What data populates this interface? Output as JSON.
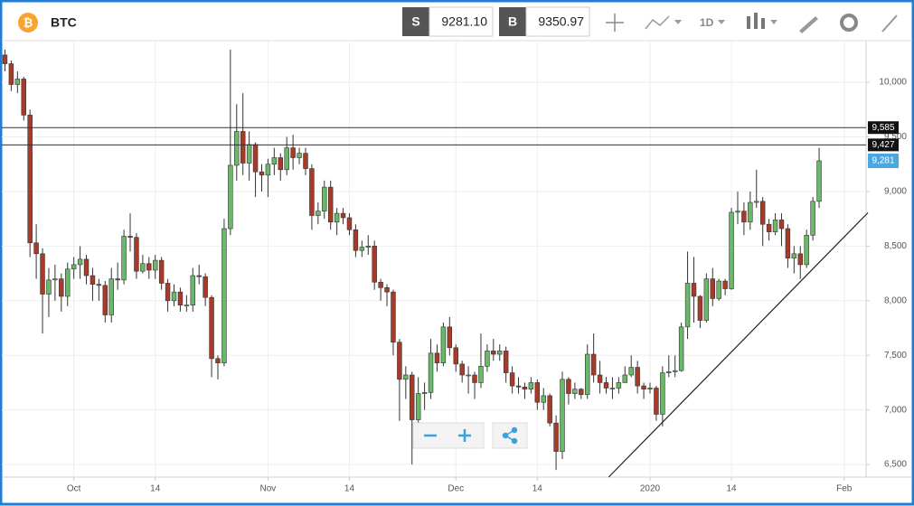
{
  "header": {
    "symbol": "BTC",
    "sell_label": "S",
    "sell_price": "9281.10",
    "buy_label": "B",
    "buy_price": "9350.97",
    "interval": "1D"
  },
  "chart_data": {
    "type": "candlestick",
    "x": [
      -11,
      -10,
      -9,
      -8,
      -7,
      -6,
      -5,
      -4,
      -3,
      -2,
      -1,
      0,
      1,
      2,
      3,
      4,
      5,
      6,
      7,
      8,
      9,
      10,
      11,
      12,
      13,
      14,
      15,
      16,
      17,
      18,
      19,
      20,
      21,
      22,
      23,
      24,
      25,
      26,
      27,
      28,
      29,
      30,
      31,
      32,
      33,
      34,
      35,
      36,
      37,
      38,
      39,
      40,
      41,
      42,
      43,
      44,
      45,
      46,
      47,
      48,
      49,
      50,
      51,
      52,
      53,
      54,
      55,
      56,
      57,
      58,
      59,
      60,
      61,
      62,
      63,
      64,
      65,
      66,
      67,
      68,
      69,
      70,
      71,
      72,
      73,
      74,
      75,
      76,
      77,
      78,
      79,
      80,
      81,
      82,
      83,
      84,
      85,
      86,
      87,
      88,
      89,
      90,
      91,
      92,
      93,
      94,
      95,
      96,
      97,
      98,
      99,
      100,
      101,
      102,
      103,
      104,
      105,
      106,
      107,
      108,
      109,
      110,
      111,
      112,
      113,
      114,
      115,
      116,
      117,
      118,
      119
    ],
    "open": [
      10250,
      10170,
      9980,
      10030,
      9700,
      8530,
      8430,
      8060,
      8190,
      8200,
      8040,
      8290,
      8330,
      8380,
      8230,
      8150,
      8140,
      7870,
      8200,
      8190,
      8590,
      8580,
      8270,
      8340,
      8280,
      8370,
      8160,
      8000,
      8080,
      7960,
      7960,
      8230,
      8220,
      8030,
      7470,
      7430,
      8660,
      9240,
      9550,
      9260,
      9430,
      9180,
      9150,
      9250,
      9310,
      9200,
      9400,
      9310,
      9350,
      9210,
      8780,
      8820,
      9040,
      8720,
      8800,
      8760,
      8650,
      8460,
      8490,
      8500,
      8170,
      8120,
      8080,
      7620,
      7280,
      7320,
      6910,
      7150,
      7160,
      7520,
      7430,
      7760,
      7570,
      7420,
      7320,
      7320,
      7250,
      7400,
      7540,
      7510,
      7540,
      7340,
      7220,
      7210,
      7190,
      7250,
      7070,
      7130,
      6880,
      6620,
      7280,
      7150,
      7190,
      7140,
      7510,
      7320,
      7250,
      7200,
      7200,
      7250,
      7320,
      7390,
      7220,
      7190,
      7200,
      6960,
      7340,
      7350,
      7360,
      7760,
      8160,
      8040,
      7820,
      8200,
      8020,
      8180,
      8110,
      8810,
      8820,
      8720,
      8900,
      8910,
      8700,
      8630,
      8740,
      8660,
      8390,
      8430,
      8330,
      8600,
      8910
    ],
    "high": [
      10300,
      10200,
      10100,
      10050,
      9750,
      8700,
      8480,
      8300,
      8330,
      8250,
      8350,
      8400,
      8500,
      8420,
      8300,
      8200,
      8180,
      8300,
      8350,
      8650,
      8800,
      8620,
      8420,
      8400,
      8420,
      8400,
      8200,
      8150,
      8120,
      8050,
      8300,
      8330,
      8250,
      8050,
      7500,
      8750,
      10300,
      9800,
      9900,
      9550,
      9450,
      9250,
      9300,
      9400,
      9350,
      9500,
      9520,
      9400,
      9400,
      9250,
      8900,
      9100,
      9100,
      8850,
      8850,
      8800,
      8700,
      8550,
      8600,
      8550,
      8200,
      8150,
      8100,
      7650,
      7400,
      7350,
      7300,
      7250,
      7650,
      7600,
      7800,
      7850,
      7600,
      7450,
      7400,
      7350,
      7700,
      7600,
      7650,
      7600,
      7580,
      7400,
      7300,
      7250,
      7300,
      7280,
      7200,
      7150,
      6950,
      7350,
      7300,
      7250,
      7200,
      7600,
      7700,
      7450,
      7300,
      7300,
      7300,
      7400,
      7500,
      7450,
      7250,
      7250,
      7220,
      7400,
      7500,
      7500,
      7800,
      8450,
      8400,
      8050,
      8250,
      8300,
      8200,
      8200,
      8850,
      9000,
      8900,
      9000,
      9200,
      8950,
      8750,
      8800,
      8800,
      8700,
      8500,
      8500,
      8650,
      8950,
      9400
    ],
    "low": [
      10100,
      9920,
      9900,
      9650,
      8400,
      8200,
      7700,
      7850,
      8000,
      7900,
      7950,
      8200,
      8200,
      8150,
      8000,
      8000,
      7800,
      7800,
      8100,
      8150,
      8450,
      8200,
      8250,
      8200,
      8200,
      8100,
      7900,
      7950,
      7900,
      7900,
      7900,
      8150,
      7950,
      7300,
      7280,
      7400,
      8600,
      9100,
      9150,
      9100,
      8950,
      9000,
      8950,
      9150,
      9100,
      9150,
      9200,
      9250,
      9150,
      8650,
      8700,
      8750,
      8650,
      8600,
      8700,
      8600,
      8400,
      8400,
      8420,
      8100,
      8000,
      7950,
      7500,
      6900,
      7100,
      6500,
      6850,
      7000,
      7100,
      7350,
      7400,
      7500,
      7350,
      7250,
      7150,
      7100,
      7200,
      7350,
      7450,
      7450,
      7250,
      7150,
      7150,
      7100,
      7150,
      7000,
      7000,
      6850,
      6450,
      6550,
      7050,
      7100,
      7100,
      7100,
      7250,
      7150,
      7150,
      7100,
      7150,
      7250,
      7300,
      7150,
      7100,
      7150,
      6900,
      6850,
      7300,
      7300,
      7350,
      7650,
      7800,
      7750,
      7800,
      7950,
      8000,
      8050,
      8100,
      8700,
      8600,
      8650,
      8850,
      8500,
      8550,
      8600,
      8500,
      8300,
      8250,
      8200,
      8300,
      8550,
      8850
    ],
    "close": [
      10170,
      9980,
      10030,
      9700,
      8530,
      8430,
      8060,
      8190,
      8200,
      8040,
      8290,
      8330,
      8380,
      8230,
      8150,
      8140,
      7870,
      8200,
      8190,
      8590,
      8580,
      8270,
      8340,
      8280,
      8370,
      8160,
      8000,
      8080,
      7960,
      7960,
      8230,
      8220,
      8030,
      7470,
      7430,
      8660,
      9240,
      9550,
      9260,
      9430,
      9180,
      9150,
      9250,
      9310,
      9200,
      9400,
      9310,
      9350,
      9210,
      8780,
      8820,
      9040,
      8720,
      8800,
      8760,
      8650,
      8460,
      8490,
      8500,
      8170,
      8120,
      8080,
      7620,
      7280,
      7320,
      6910,
      7150,
      7160,
      7520,
      7430,
      7760,
      7570,
      7420,
      7320,
      7320,
      7250,
      7400,
      7540,
      7510,
      7540,
      7340,
      7220,
      7210,
      7190,
      7250,
      7070,
      7130,
      6880,
      6620,
      7280,
      7150,
      7190,
      7140,
      7510,
      7320,
      7250,
      7200,
      7200,
      7250,
      7320,
      7390,
      7220,
      7190,
      7200,
      6960,
      7340,
      7350,
      7360,
      7760,
      8160,
      8040,
      7820,
      8200,
      8020,
      8180,
      8110,
      8810,
      8820,
      8720,
      8900,
      8910,
      8700,
      8630,
      8740,
      8660,
      8390,
      8430,
      8330,
      8600,
      8910,
      9281
    ],
    "up_color": "#6ab86a",
    "down_color": "#a83a2a",
    "xlim": [
      -11.5,
      126.5
    ],
    "xticks": [
      {
        "value": 0,
        "label": "Oct"
      },
      {
        "value": 13,
        "label": "14"
      },
      {
        "value": 31,
        "label": "Nov"
      },
      {
        "value": 44,
        "label": "14"
      },
      {
        "value": 61,
        "label": "Dec"
      },
      {
        "value": 74,
        "label": "14"
      },
      {
        "value": 92,
        "label": "2020"
      },
      {
        "value": 105,
        "label": "14"
      },
      {
        "value": 123,
        "label": "Feb"
      }
    ],
    "ylim": [
      6385,
      10373
    ],
    "yticks": [
      {
        "value": 6500,
        "label": "6,500"
      },
      {
        "value": 7000,
        "label": "7,000"
      },
      {
        "value": 7500,
        "label": "7,500"
      },
      {
        "value": 8000,
        "label": "8,000"
      },
      {
        "value": 8500,
        "label": "8,500"
      },
      {
        "value": 9000,
        "label": "9,000"
      },
      {
        "value": 9500,
        "label": "9,500"
      },
      {
        "value": 10000,
        "label": "10,000"
      }
    ],
    "grid": true,
    "levels": [
      {
        "value": 9585,
        "label": "9,585"
      },
      {
        "value": 9427,
        "label": "9,427"
      }
    ],
    "current": {
      "value": 9281,
      "label": "9,281",
      "color": "#4aa8e0"
    },
    "trendline": {
      "x": [
        85.4,
        126.8
      ],
      "y": [
        6385,
        8806
      ]
    }
  }
}
